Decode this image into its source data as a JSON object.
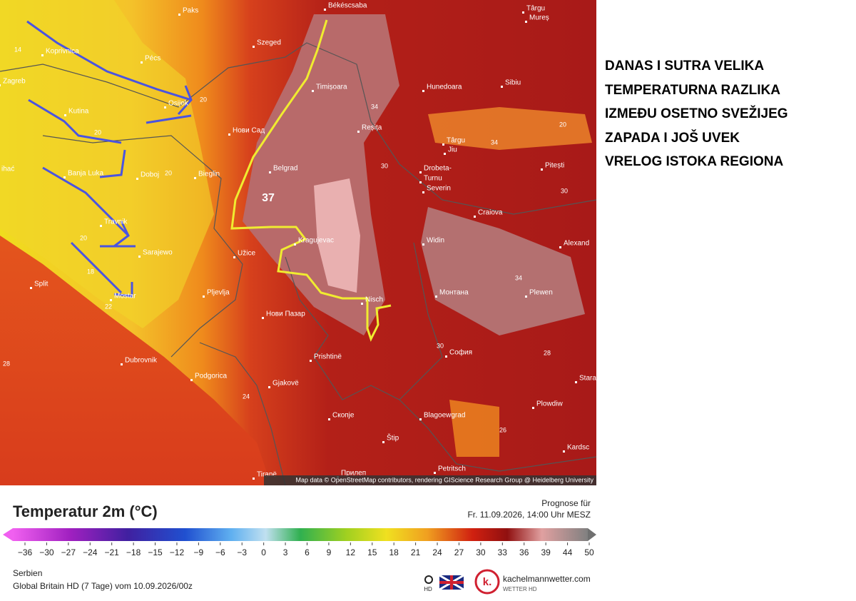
{
  "map": {
    "cities": [
      "Békéscsaba",
      "Paks",
      "Târgu",
      "Mureș",
      "Koprivnica",
      "Pécs",
      "Szeged",
      "Zagreb",
      "Osijek",
      "Timișoara",
      "Hunedoara",
      "Sibiu",
      "Kutina",
      "Нови Сад",
      "Reșița",
      "Târgu",
      "Jiu",
      "Banja Luka",
      "Doboj",
      "Bieglin",
      "Belgrad",
      "Drobeta-",
      "Turnu",
      "Severin",
      "Pitești",
      "ihać",
      "Craiova",
      "Travnik",
      "Kragujevac",
      "Widin",
      "Alexand",
      "Sarajewo",
      "Užice",
      "Split",
      "Mostar",
      "Монтана",
      "Plewen",
      "Pljevlja",
      "Nisch",
      "Нови Пазар",
      "Dubrovnik",
      "Prishtinë",
      "София",
      "Podgorica",
      "Gjakovë",
      "Stara",
      "Plowdiw",
      "Скопје",
      "Blagoewgrad",
      "Štip",
      "Kardsc",
      "Tiranë",
      "Прилеп",
      "Petritsch"
    ],
    "contours": [
      "14",
      "20",
      "20",
      "20",
      "20",
      "18",
      "22",
      "34",
      "30",
      "20",
      "34",
      "34",
      "30",
      "28",
      "24",
      "26",
      "30",
      "28"
    ],
    "peak": "37",
    "attribution": "Map data © OpenStreetMap contributors, rendering GIScience Research Group @ Heidelberg University"
  },
  "annotation": [
    "DANAS I SUTRA VELIKA",
    "TEMPERATURNA RAZLIKA",
    "IZMEĐU OSETNO SVEŽIJEG",
    "ZAPADA I JOŠ UVEK",
    "VRELOG ISTOKA REGIONA"
  ],
  "legend": {
    "title": "Temperatur 2m (°C)",
    "forecast_label": "Prognose für",
    "forecast_time": "Fr. 11.09.2026, 14:00 Uhr MESZ",
    "ticks": [
      "−36",
      "−30",
      "−27",
      "−24",
      "−21",
      "−18",
      "−15",
      "−12",
      "−9",
      "−6",
      "−3",
      "0",
      "3",
      "6",
      "9",
      "12",
      "15",
      "18",
      "21",
      "24",
      "27",
      "30",
      "33",
      "36",
      "39",
      "44",
      "50"
    ]
  },
  "footer": {
    "region": "Serbien",
    "model": "Global Britain HD (7 Tage) vom 10.09.2026/00z",
    "hd": "HD",
    "logo": "k.",
    "site": "kachelmannwetter.com",
    "tagline": "WETTER HD"
  }
}
